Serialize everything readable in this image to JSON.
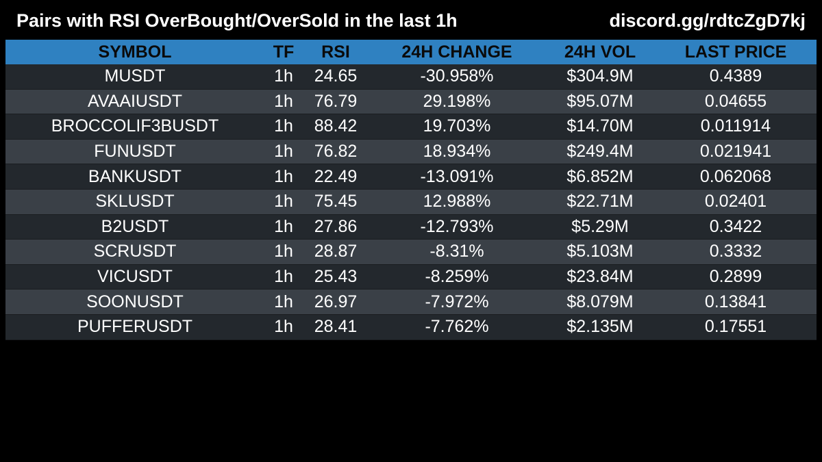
{
  "header": {
    "title": "Pairs with RSI OverBought/OverSold in the last 1h",
    "link": "discord.gg/rdtcZgD7kj"
  },
  "table": {
    "columns": [
      "SYMBOL",
      "TF",
      "RSI",
      "24H CHANGE",
      "24H VOL",
      "LAST PRICE"
    ],
    "rows": [
      [
        "MUSDT",
        "1h",
        "24.65",
        "-30.958%",
        "$304.9M",
        "0.4389"
      ],
      [
        "AVAAIUSDT",
        "1h",
        "76.79",
        "29.198%",
        "$95.07M",
        "0.04655"
      ],
      [
        "BROCCOLIF3BUSDT",
        "1h",
        "88.42",
        "19.703%",
        "$14.70M",
        "0.011914"
      ],
      [
        "FUNUSDT",
        "1h",
        "76.82",
        "18.934%",
        "$249.4M",
        "0.021941"
      ],
      [
        "BANKUSDT",
        "1h",
        "22.49",
        "-13.091%",
        "$6.852M",
        "0.062068"
      ],
      [
        "SKLUSDT",
        "1h",
        "75.45",
        "12.988%",
        "$22.71M",
        "0.02401"
      ],
      [
        "B2USDT",
        "1h",
        "27.86",
        "-12.793%",
        "$5.29M",
        "0.3422"
      ],
      [
        "SCRUSDT",
        "1h",
        "28.87",
        "-8.31%",
        "$5.103M",
        "0.3332"
      ],
      [
        "VICUSDT",
        "1h",
        "25.43",
        "-8.259%",
        "$23.84M",
        "0.2899"
      ],
      [
        "SOONUSDT",
        "1h",
        "26.97",
        "-7.972%",
        "$8.079M",
        "0.13841"
      ],
      [
        "PUFFERUSDT",
        "1h",
        "28.41",
        "-7.762%",
        "$2.135M",
        "0.17551"
      ]
    ]
  },
  "colors": {
    "background": "#000000",
    "header_bar": "#2f81c1",
    "row_dark": "#23282d",
    "row_light": "#3a4047",
    "text": "#ffffff"
  }
}
